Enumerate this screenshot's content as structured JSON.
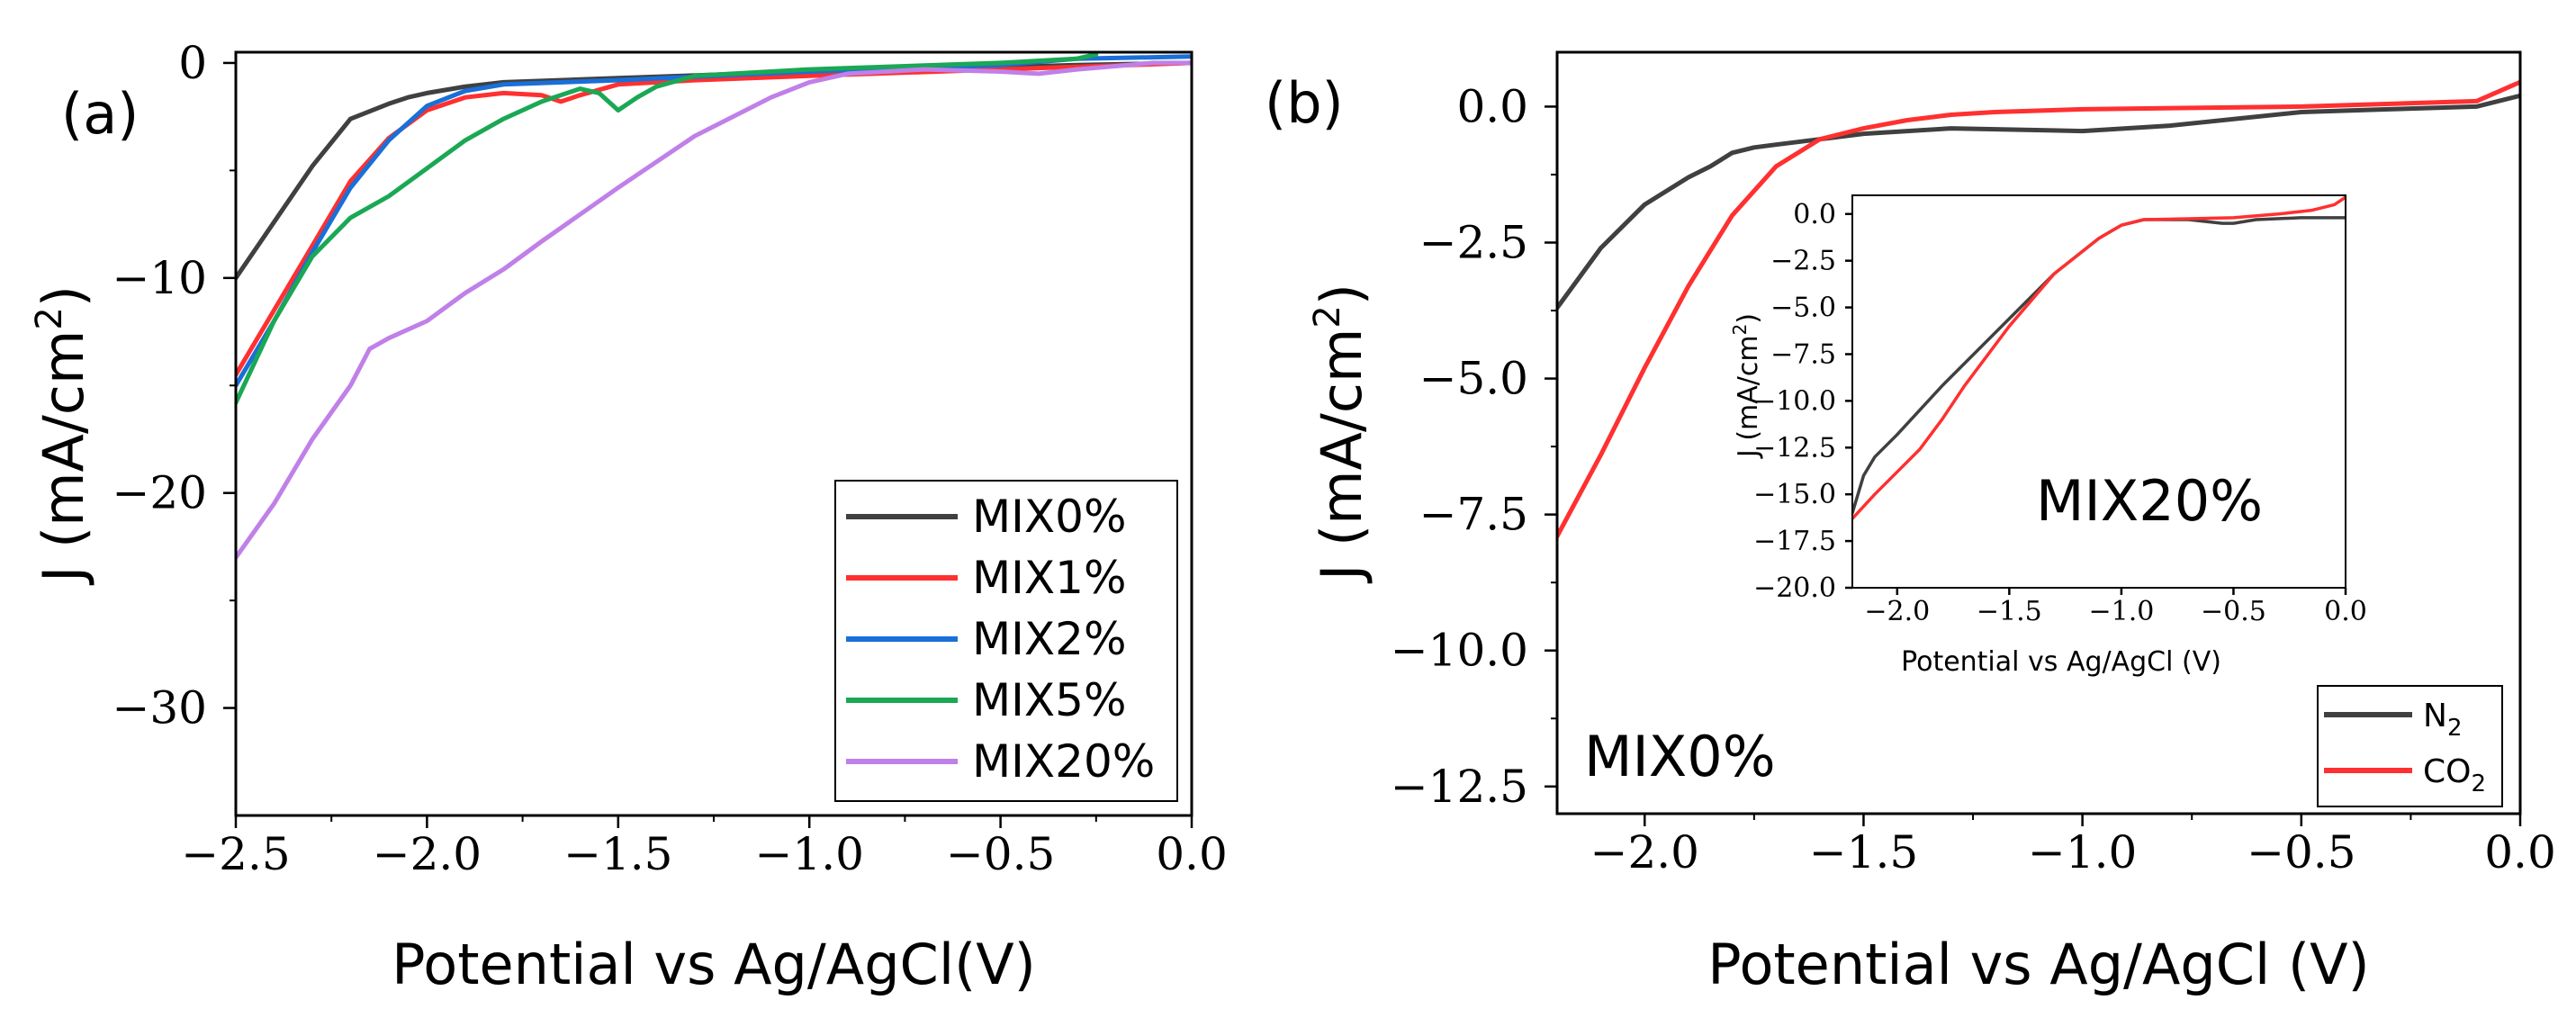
{
  "chart_data": [
    {
      "panel": "(a)",
      "type": "line",
      "xlabel": "Potential vs Ag/AgCl(V)",
      "ylabel": "J (mA/cm",
      "ylabel_sup": "2",
      "ylabel_close": ")",
      "xlim": [
        -2.5,
        0.0
      ],
      "ylim": [
        -35,
        0.5
      ],
      "xticks": [
        -2.5,
        -2.0,
        -1.5,
        -1.0,
        -0.5,
        0.0
      ],
      "xtick_labels": [
        "−2.5",
        "−2.0",
        "−1.5",
        "−1.0",
        "−0.5",
        "0.0"
      ],
      "yticks": [
        0,
        -10,
        -20,
        -30
      ],
      "ytick_labels": [
        "0",
        "−10",
        "−20",
        "−30"
      ],
      "legend_position": "bottom-right",
      "series": [
        {
          "name": "MIX0%",
          "color": "#404040",
          "x": [
            -2.5,
            -2.4,
            -2.3,
            -2.2,
            -2.1,
            -2.05,
            -2.0,
            -1.9,
            -1.8,
            -1.5,
            -1.0,
            -0.5,
            -0.3,
            0.0
          ],
          "y": [
            -10.0,
            -7.4,
            -4.8,
            -2.6,
            -1.9,
            -1.6,
            -1.4,
            -1.1,
            -0.9,
            -0.7,
            -0.4,
            -0.2,
            -0.1,
            0.0
          ]
        },
        {
          "name": "MIX1%",
          "color": "#ff3030",
          "x": [
            -2.5,
            -2.4,
            -2.3,
            -2.2,
            -2.1,
            -2.0,
            -1.9,
            -1.8,
            -1.7,
            -1.65,
            -1.6,
            -1.5,
            -1.3,
            -1.0,
            -0.5,
            0.0
          ],
          "y": [
            -14.5,
            -11.5,
            -8.5,
            -5.5,
            -3.5,
            -2.2,
            -1.6,
            -1.4,
            -1.5,
            -1.8,
            -1.5,
            -1.0,
            -0.8,
            -0.6,
            -0.3,
            0.0
          ]
        },
        {
          "name": "MIX2%",
          "color": "#1a6fd8",
          "x": [
            -2.5,
            -2.4,
            -2.3,
            -2.2,
            -2.1,
            -2.0,
            -1.9,
            -1.8,
            -1.5,
            -1.0,
            -0.5,
            -0.3,
            0.0
          ],
          "y": [
            -15.0,
            -12.0,
            -8.8,
            -5.8,
            -3.6,
            -2.0,
            -1.3,
            -1.0,
            -0.8,
            -0.4,
            -0.1,
            0.2,
            0.3
          ]
        },
        {
          "name": "MIX5%",
          "color": "#1aa855",
          "x": [
            -2.5,
            -2.4,
            -2.3,
            -2.2,
            -2.1,
            -2.0,
            -1.9,
            -1.8,
            -1.7,
            -1.6,
            -1.55,
            -1.5,
            -1.45,
            -1.4,
            -1.3,
            -1.0,
            -0.5,
            -0.3,
            -0.25
          ],
          "y": [
            -15.8,
            -12.0,
            -9.0,
            -7.2,
            -6.2,
            -4.9,
            -3.6,
            -2.6,
            -1.8,
            -1.2,
            -1.4,
            -2.2,
            -1.6,
            -1.1,
            -0.6,
            -0.3,
            0.0,
            0.2,
            0.4
          ]
        },
        {
          "name": "MIX20%",
          "color": "#c080e8",
          "x": [
            -2.5,
            -2.4,
            -2.3,
            -2.2,
            -2.15,
            -2.1,
            -2.0,
            -1.9,
            -1.8,
            -1.7,
            -1.5,
            -1.3,
            -1.1,
            -1.0,
            -0.9,
            -0.7,
            -0.5,
            -0.4,
            -0.3,
            -0.1,
            0.0
          ],
          "y": [
            -23.0,
            -20.5,
            -17.5,
            -15.0,
            -13.3,
            -12.8,
            -12.0,
            -10.7,
            -9.6,
            -8.3,
            -5.8,
            -3.4,
            -1.6,
            -0.9,
            -0.5,
            -0.3,
            -0.4,
            -0.5,
            -0.3,
            0.0,
            0.0
          ]
        }
      ]
    },
    {
      "panel": "(b)",
      "type": "line",
      "xlabel": "Potential vs Ag/AgCl (V)",
      "ylabel": "J (mA/cm",
      "ylabel_sup": "2",
      "ylabel_close": ")",
      "xlim": [
        -2.2,
        0.0
      ],
      "ylim": [
        -13.0,
        1.0
      ],
      "xticks": [
        -2.0,
        -1.5,
        -1.0,
        -0.5,
        0.0
      ],
      "xtick_labels": [
        "−2.0",
        "−1.5",
        "−1.0",
        "−0.5",
        "0.0"
      ],
      "yticks": [
        0.0,
        -2.5,
        -5.0,
        -7.5,
        -10.0,
        -12.5
      ],
      "ytick_labels": [
        "0.0",
        "−2.5",
        "−5.0",
        "−7.5",
        "−10.0",
        "−12.5"
      ],
      "annotation": "MIX0%",
      "legend_position": "bottom-right",
      "series": [
        {
          "name": "N",
          "name_sub": "2",
          "color": "#404040",
          "x": [
            -2.2,
            -2.1,
            -2.0,
            -1.9,
            -1.85,
            -1.8,
            -1.75,
            -1.7,
            -1.6,
            -1.5,
            -1.3,
            -1.0,
            -0.8,
            -0.5,
            -0.3,
            -0.1,
            0.0
          ],
          "y": [
            -3.7,
            -2.6,
            -1.8,
            -1.3,
            -1.1,
            -0.85,
            -0.75,
            -0.7,
            -0.6,
            -0.5,
            -0.4,
            -0.45,
            -0.35,
            -0.1,
            -0.05,
            0.0,
            0.2
          ]
        },
        {
          "name": "CO",
          "name_sub": "2",
          "color": "#ff3030",
          "x": [
            -2.2,
            -2.1,
            -2.0,
            -1.9,
            -1.8,
            -1.7,
            -1.6,
            -1.5,
            -1.4,
            -1.3,
            -1.2,
            -1.0,
            -0.5,
            -0.1,
            0.0
          ],
          "y": [
            -7.9,
            -6.4,
            -4.8,
            -3.3,
            -2.0,
            -1.1,
            -0.6,
            -0.4,
            -0.25,
            -0.15,
            -0.1,
            -0.05,
            0.0,
            0.1,
            0.45
          ]
        }
      ]
    },
    {
      "panel": "(b) inset",
      "type": "line",
      "xlabel": "Potential vs Ag/AgCl (V)",
      "ylabel": "J (mA/cm",
      "ylabel_sup": "2",
      "ylabel_close": ")",
      "xlim": [
        -2.2,
        0.0
      ],
      "ylim": [
        -20.0,
        1.0
      ],
      "xticks": [
        -2.0,
        -1.5,
        -1.0,
        -0.5,
        0.0
      ],
      "xtick_labels": [
        "−2.0",
        "−1.5",
        "−1.0",
        "−0.5",
        "0.0"
      ],
      "yticks": [
        0.0,
        -2.5,
        -5.0,
        -7.5,
        -10.0,
        -12.5,
        -15.0,
        -17.5,
        -20.0
      ],
      "ytick_labels": [
        "0.0",
        "−2.5",
        "−5.0",
        "−7.5",
        "−10.0",
        "−12.5",
        "−15.0",
        "−17.5",
        "−20.0"
      ],
      "annotation": "MIX20%",
      "series": [
        {
          "name": "N2",
          "color": "#404040",
          "x": [
            -2.2,
            -2.15,
            -2.1,
            -2.0,
            -1.9,
            -1.8,
            -1.7,
            -1.5,
            -1.3,
            -1.1,
            -1.0,
            -0.9,
            -0.7,
            -0.55,
            -0.5,
            -0.4,
            -0.2,
            0.0
          ],
          "y": [
            -16.0,
            -14.0,
            -13.0,
            -11.8,
            -10.5,
            -9.2,
            -8.0,
            -5.6,
            -3.2,
            -1.3,
            -0.6,
            -0.3,
            -0.3,
            -0.5,
            -0.5,
            -0.3,
            -0.2,
            -0.2
          ]
        },
        {
          "name": "CO2",
          "color": "#ff3030",
          "x": [
            -2.2,
            -2.1,
            -2.0,
            -1.9,
            -1.8,
            -1.7,
            -1.5,
            -1.3,
            -1.1,
            -1.0,
            -0.9,
            -0.7,
            -0.5,
            -0.3,
            -0.15,
            -0.05,
            0.0
          ],
          "y": [
            -16.3,
            -15.0,
            -13.8,
            -12.6,
            -11.0,
            -9.2,
            -6.0,
            -3.2,
            -1.3,
            -0.6,
            -0.3,
            -0.25,
            -0.2,
            0.0,
            0.2,
            0.5,
            0.9
          ]
        }
      ]
    }
  ]
}
